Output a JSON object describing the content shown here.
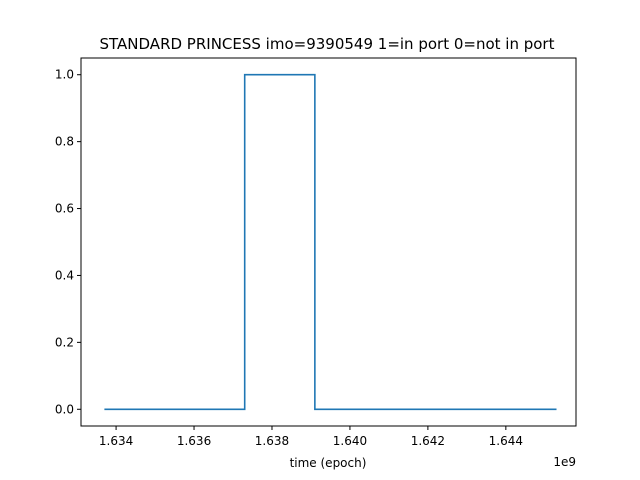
{
  "chart_data": {
    "type": "line",
    "title": "STANDARD PRINCESS imo=9390549 1=in port 0=not in port",
    "xlabel": "time (epoch)",
    "ylabel": "",
    "x_offset_label": "1e9",
    "xlim": [
      1.6331,
      1.6458
    ],
    "ylim": [
      -0.05,
      1.05
    ],
    "x_ticks": [
      1.634,
      1.636,
      1.638,
      1.64,
      1.642,
      1.644
    ],
    "x_tick_labels": [
      "1.634",
      "1.636",
      "1.638",
      "1.640",
      "1.642",
      "1.644"
    ],
    "y_ticks": [
      0.0,
      0.2,
      0.4,
      0.6,
      0.8,
      1.0
    ],
    "y_tick_labels": [
      "0.0",
      "0.2",
      "0.4",
      "0.6",
      "0.8",
      "1.0"
    ],
    "grid": false,
    "line_color": "#1f77b4",
    "series": [
      {
        "x": [
          1.6337,
          1.6373,
          1.6373,
          1.6391,
          1.6391,
          1.6453
        ],
        "y": [
          0,
          0,
          1,
          1,
          0,
          0
        ]
      }
    ]
  }
}
